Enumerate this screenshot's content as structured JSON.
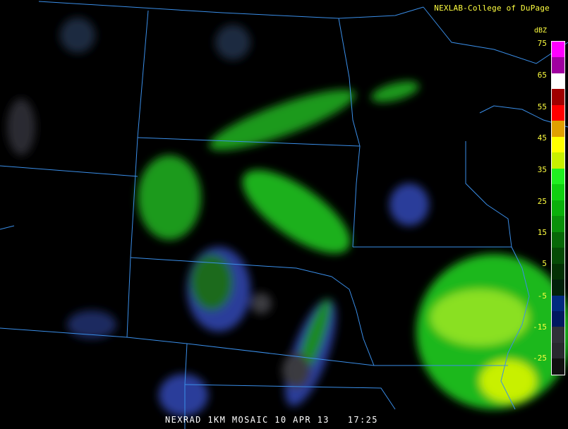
{
  "header": {
    "credit": "NEXLAB-College of DuPage"
  },
  "legend": {
    "unit": "dBZ",
    "ticks": [
      "75",
      "65",
      "55",
      "45",
      "35",
      "25",
      "15",
      "5",
      "-5",
      "-15",
      "-25"
    ],
    "colors": [
      "#ff00ff",
      "#a000a0",
      "#ffffff",
      "#a00000",
      "#ff0000",
      "#e0a000",
      "#ffff00",
      "#c8f000",
      "#20f020",
      "#10d010",
      "#0bb00b",
      "#0a900a",
      "#086808",
      "#064a06",
      "#043004",
      "#02200a",
      "#002a80",
      "#001860",
      "#303038",
      "#28282e",
      "#101010"
    ]
  },
  "footer": {
    "caption": "NEXRAD 1KM MOSAIC 10 APR 13   17:25"
  },
  "colors": {
    "boundary": "#3a8ee8",
    "label": "#ffff40"
  }
}
